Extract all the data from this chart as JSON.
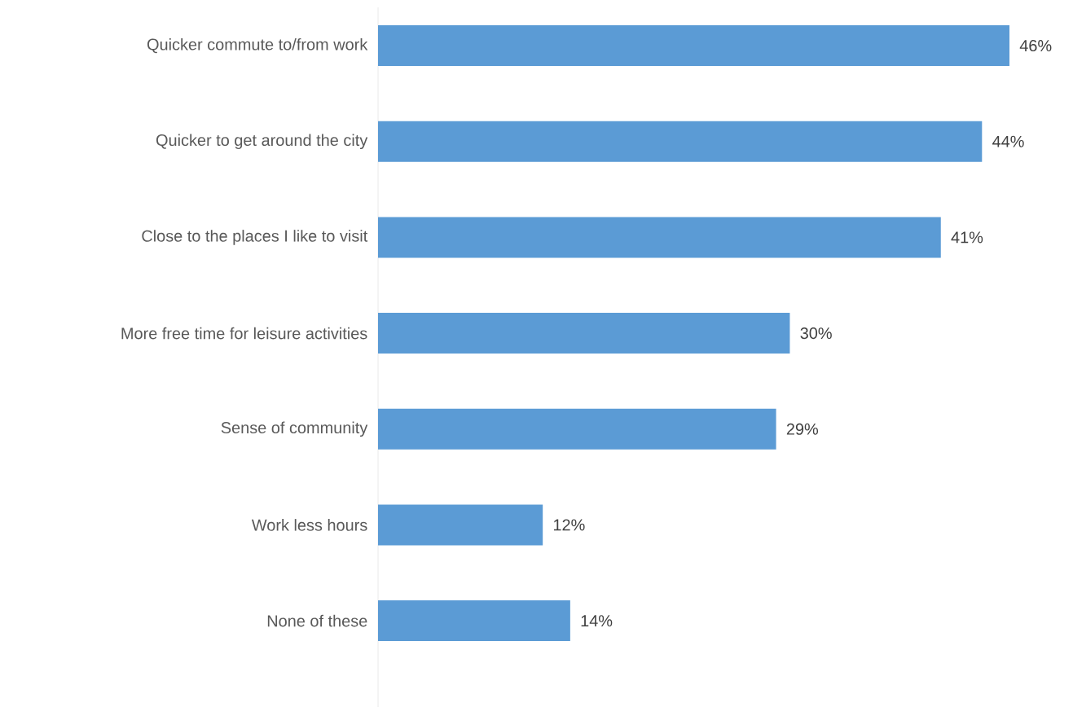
{
  "chart_data": {
    "type": "bar",
    "orientation": "horizontal",
    "categories": [
      "Quicker commute to/from work",
      "Quicker to get around the city",
      "Close to the places I like to visit",
      "More free time for leisure activities",
      "Sense of community",
      "Work less hours",
      "None of these"
    ],
    "values": [
      46,
      44,
      41,
      30,
      29,
      12,
      14
    ],
    "value_labels": [
      "46%",
      "44%",
      "41%",
      "30%",
      "29%",
      "12%",
      "14%"
    ],
    "color": "#5b9bd5",
    "tick_labels": "y"
  }
}
